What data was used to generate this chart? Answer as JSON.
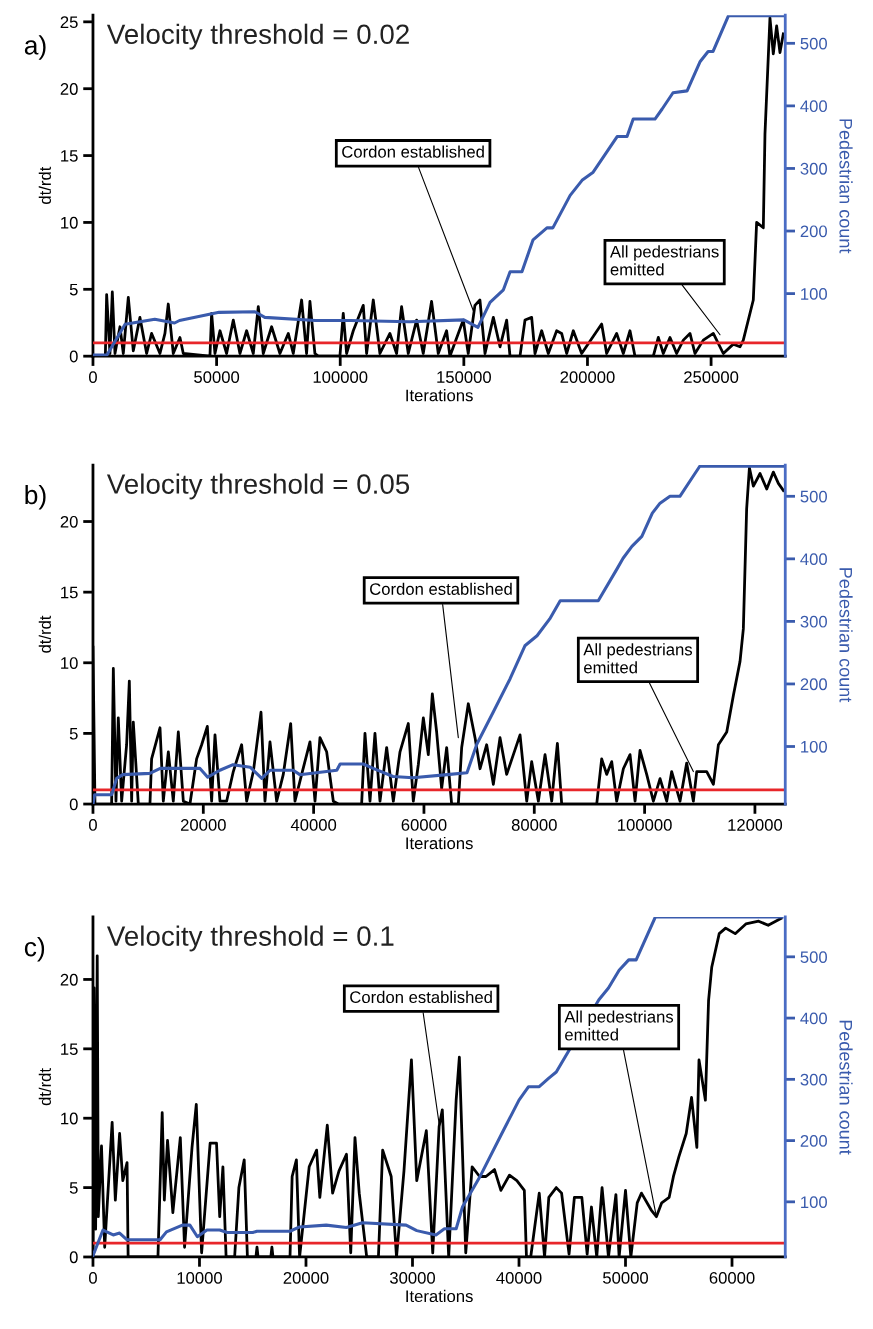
{
  "chart_data": [
    {
      "type": "line",
      "title": "Velocity threshold = 0.02",
      "xlabel": "Iterations",
      "ylabel": "dt/rdt",
      "y2label": "Pedestrian count",
      "xlim": [
        0,
        280000
      ],
      "ylim": [
        0,
        25.5
      ],
      "y2lim": [
        0,
        545
      ],
      "xticks": [
        0,
        50000,
        100000,
        150000,
        200000,
        250000
      ],
      "yticks": [
        0,
        5,
        10,
        15,
        20,
        25
      ],
      "y2ticks": [
        100,
        200,
        300,
        400,
        500
      ],
      "grid": false,
      "legend": false,
      "ref_lines": [
        {
          "axis": "y",
          "value": 1,
          "color": "#e8262a"
        }
      ],
      "annotations": [
        "a)",
        {
          "text": "Cordon established",
          "x": 153840,
          "y": 3.4
        },
        {
          "text": "All pedestrians\nemitted",
          "x": 253600,
          "y": 1.6
        }
      ],
      "series": [
        {
          "color": "#000000",
          "x": [
            0,
            5000,
            5530,
            6870,
            7820,
            8900,
            10920,
            12270,
            14290,
            16310,
            19000,
            21700,
            23720,
            27090,
            29110,
            30460,
            32480,
            35180,
            36530,
            47310,
            47990,
            49330,
            51360,
            54050,
            56750,
            59440,
            62140,
            64840,
            66860,
            68880,
            72250,
            75620,
            78990,
            81010,
            84380,
            86400,
            87750,
            89770,
            91120,
            99880,
            101230,
            102580,
            105280,
            109320,
            110670,
            113370,
            116060,
            120100,
            122800,
            124820,
            127520,
            130890,
            133580,
            136950,
            139650,
            143020,
            144370,
            149760,
            151780,
            154480,
            156500,
            158560,
            161930,
            164630,
            167320,
            168670,
            172710,
            174740,
            177430,
            178780,
            181480,
            184170,
            187540,
            189560,
            191590,
            194280,
            197650,
            205740,
            207760,
            211810,
            214500,
            217200,
            219220,
            226630,
            228660,
            230680,
            233380,
            236070,
            238770,
            241460,
            243480,
            246850,
            250900,
            254940,
            258980,
            261680,
            263030,
            267070,
            268420,
            271120,
            271790,
            273810,
            275160,
            276510,
            277860,
            279210
          ],
          "values": [
            0,
            0,
            4.6,
            0.2,
            4.8,
            0.2,
            2.2,
            0.2,
            4.4,
            0.4,
            2.9,
            0.2,
            1.7,
            0.2,
            1.7,
            3.9,
            0.2,
            1.4,
            0.2,
            0,
            3.2,
            0.2,
            1.9,
            0.2,
            2.7,
            0.2,
            1.9,
            0.2,
            3.7,
            0.2,
            2.2,
            0.2,
            1.7,
            0.2,
            4.2,
            0.2,
            4.1,
            0.2,
            0,
            0,
            3.2,
            0.2,
            1.9,
            3.8,
            0.2,
            4.2,
            0.2,
            1.7,
            0.2,
            3.7,
            0.2,
            2.7,
            0.2,
            4.1,
            0.2,
            1.9,
            0,
            2.7,
            0.2,
            3.8,
            4.2,
            0.2,
            2.9,
            0.7,
            2.7,
            0,
            0,
            2.7,
            2.9,
            0.2,
            1.9,
            0.2,
            1.9,
            1.7,
            0.2,
            1.9,
            0.2,
            2.4,
            0.2,
            1.7,
            0.2,
            1.9,
            0,
            0,
            1.4,
            0.2,
            1.4,
            0.2,
            1.2,
            1.7,
            0.2,
            1.2,
            1.7,
            0.2,
            0.9,
            0.7,
            1.2,
            4.2,
            10,
            9.6,
            16.6,
            25.3,
            22.6,
            24.7,
            22.7,
            24.1
          ]
        },
        {
          "color": "#3a5bad",
          "axis": "y2",
          "x": [
            0,
            5660,
            13000,
            25000,
            33000,
            35000,
            51000,
            65500,
            69500,
            90000,
            104000,
            128000,
            150000,
            155700,
            160600,
            166000,
            168700,
            173500,
            178000,
            183600,
            186000,
            193000,
            197800,
            202300,
            212000,
            216000,
            218500,
            227300,
            230200,
            234600,
            240300,
            245600,
            248800,
            250800,
            257000,
            279000
          ],
          "values": [
            2,
            2,
            51,
            59,
            53,
            57,
            70,
            71,
            62,
            57,
            57,
            55,
            58,
            46,
            86,
            106,
            135,
            135,
            186,
            205,
            205,
            257,
            281,
            294,
            351,
            351,
            379,
            379,
            395,
            421,
            424,
            471,
            487,
            487,
            544,
            544
          ]
        }
      ]
    },
    {
      "type": "line",
      "title": "Velocity threshold = 0.05",
      "xlabel": "Iterations",
      "ylabel": "dt/rdt",
      "y2label": "Pedestrian count",
      "xlim": [
        0,
        125500
      ],
      "ylim": [
        0,
        24
      ],
      "y2lim": [
        8,
        550
      ],
      "xticks": [
        0,
        20000,
        40000,
        60000,
        80000,
        100000,
        120000
      ],
      "yticks": [
        0,
        5,
        10,
        15,
        20
      ],
      "y2ticks": [
        100,
        200,
        300,
        400,
        500
      ],
      "grid": false,
      "legend": false,
      "ref_lines": [
        {
          "axis": "y",
          "value": 1,
          "color": "#e8262a"
        }
      ],
      "annotations": [
        "b)",
        {
          "text": "Cordon established",
          "x": 66230,
          "y": 4.7
        },
        {
          "text": "All pedestrians\nemitted",
          "x": 108840,
          "y": 2.3
        }
      ],
      "series": [
        {
          "color": "#000000",
          "x": [
            0,
            360,
            3380,
            3690,
            4170,
            4590,
            5200,
            6100,
            6590,
            7010,
            7310,
            8220,
            10330,
            10630,
            12150,
            12750,
            13660,
            14560,
            15470,
            16380,
            17580,
            18790,
            19700,
            20730,
            21510,
            22120,
            23020,
            24230,
            25440,
            26950,
            27860,
            29070,
            30460,
            31180,
            32090,
            33300,
            34500,
            35840,
            36620,
            37830,
            39340,
            40250,
            41150,
            42360,
            43570,
            44480,
            48700,
            49310,
            50220,
            51120,
            52030,
            53240,
            54450,
            55660,
            57160,
            58070,
            58980,
            59890,
            60790,
            61520,
            62300,
            63210,
            64120,
            65020,
            66230,
            66840,
            68040,
            69260,
            70170,
            71370,
            72580,
            73790,
            75000,
            76210,
            77420,
            78630,
            79530,
            80740,
            81950,
            83160,
            84190,
            84970,
            91320,
            92220,
            93130,
            94040,
            94940,
            96150,
            97360,
            98270,
            99170,
            100380,
            101590,
            102800,
            104010,
            104910,
            106420,
            107630,
            108840,
            109450,
            111260,
            112470,
            113380,
            114890,
            116100,
            117300,
            117900,
            118500,
            119000,
            119720,
            120930,
            122140,
            123340,
            124250,
            125160
          ],
          "values": [
            11.1,
            0,
            0,
            9.6,
            0.2,
            6.1,
            0.2,
            4.2,
            8.7,
            0.2,
            5.8,
            0,
            0,
            3.2,
            5.4,
            0.2,
            3.7,
            0.2,
            5.1,
            0.2,
            0,
            3.2,
            4.2,
            5.5,
            0.2,
            4.9,
            0.2,
            0.2,
            2.3,
            4.2,
            0.2,
            2.3,
            6.5,
            0.2,
            4.4,
            0.2,
            2.1,
            5.7,
            0.2,
            2.1,
            4.4,
            0.2,
            4.7,
            3.7,
            0.2,
            0,
            0,
            5,
            0.2,
            5,
            0.2,
            4,
            0.2,
            3.7,
            5.7,
            0.2,
            2.8,
            6.1,
            3.5,
            7.8,
            5.1,
            1.1,
            4,
            0,
            0,
            4,
            7.1,
            4.7,
            2.5,
            4.2,
            1.4,
            4.7,
            2.1,
            3.5,
            4.9,
            0.2,
            3,
            0.2,
            3.5,
            0.2,
            4.3,
            0,
            0,
            3.2,
            2.1,
            3,
            0.2,
            2.5,
            3.5,
            0.2,
            3.8,
            2.1,
            0.2,
            1.8,
            0.2,
            2.3,
            0.2,
            2.9,
            0.2,
            2.3,
            2.3,
            1.4,
            4.2,
            5.1,
            7.7,
            10.1,
            12.4,
            20.9,
            23.8,
            22.5,
            23.4,
            22.3,
            23.5,
            22.7,
            22.2
          ]
        },
        {
          "color": "#3a5bad",
          "axis": "y2",
          "x": [
            0,
            300,
            3400,
            4300,
            5400,
            10300,
            12200,
            15800,
            19400,
            20800,
            23000,
            25400,
            28500,
            30600,
            32100,
            36300,
            37500,
            44200,
            44800,
            49000,
            50800,
            54400,
            58000,
            64200,
            67800,
            69600,
            72500,
            75600,
            78300,
            80500,
            82800,
            84700,
            91600,
            95000,
            96100,
            97700,
            99500,
            101400,
            102800,
            104600,
            106400,
            108800,
            110000,
            125000
          ],
          "values": [
            8,
            23,
            23,
            49,
            55,
            57,
            65,
            65,
            65,
            51,
            62,
            71,
            67,
            49,
            62,
            62,
            55,
            62,
            72,
            72,
            65,
            52,
            50,
            55,
            58,
            104,
            154,
            208,
            261,
            277,
            304,
            333,
            333,
            384,
            401,
            420,
            436,
            473,
            489,
            500,
            500,
            532,
            548,
            548
          ]
        }
      ]
    },
    {
      "type": "line",
      "title": "Velocity threshold = 0.1",
      "xlabel": "Iterations",
      "ylabel": "dt/rdt",
      "y2label": "Pedestrian count",
      "xlim": [
        0,
        65000
      ],
      "ylim": [
        0,
        24.5
      ],
      "y2lim": [
        10,
        565
      ],
      "xticks": [
        0,
        10000,
        20000,
        30000,
        40000,
        50000,
        60000
      ],
      "yticks": [
        0,
        5,
        10,
        15,
        20
      ],
      "y2ticks": [
        100,
        200,
        300,
        400,
        500
      ],
      "grid": false,
      "legend": false,
      "ref_lines": [
        {
          "axis": "y",
          "value": 1,
          "color": "#e8262a"
        }
      ],
      "annotations": [
        "c)",
        {
          "text": "Cordon established",
          "x": 32500,
          "y": 9.6
        },
        {
          "text": "All pedestrians\nemitted",
          "x": 52900,
          "y": 2.9
        }
      ],
      "series": [
        {
          "color": "#000000",
          "x": [
            0,
            100,
            250,
            400,
            500,
            800,
            1100,
            1800,
            2100,
            2500,
            2800,
            3200,
            3300,
            6100,
            6500,
            6700,
            7000,
            7500,
            8200,
            8600,
            9300,
            9700,
            10200,
            11000,
            11600,
            11900,
            12200,
            12500,
            13300,
            13700,
            14200,
            14500,
            15300,
            15400,
            15500,
            16700,
            16800,
            16900,
            18500,
            18700,
            19100,
            19400,
            20300,
            21000,
            21300,
            22000,
            22500,
            23100,
            23800,
            24200,
            24600,
            25000,
            25700,
            26800,
            27200,
            28000,
            28500,
            29200,
            29900,
            30400,
            31300,
            31900,
            32500,
            32800,
            33400,
            34100,
            34400,
            35000,
            35600,
            36300,
            36900,
            37700,
            38300,
            39100,
            39800,
            40500,
            40700,
            41100,
            41900,
            42400,
            42800,
            43500,
            44000,
            44700,
            45200,
            45900,
            46400,
            46800,
            47300,
            47800,
            48400,
            49100,
            49400,
            50000,
            50500,
            51100,
            51500,
            52400,
            52900,
            53400,
            54100,
            54500,
            55000,
            55700,
            56200,
            56700,
            56900,
            57500,
            57800,
            58100,
            58800,
            59400,
            60300,
            61300,
            62500,
            63400,
            64600
          ],
          "values": [
            0,
            19.4,
            2,
            21.7,
            2.9,
            8,
            0.7,
            9.7,
            4.1,
            8.9,
            5.5,
            6.8,
            0,
            0,
            10.4,
            4.1,
            8.4,
            3.2,
            8.6,
            0.7,
            7.9,
            11,
            0.3,
            8.2,
            8.2,
            2.9,
            6.5,
            0,
            0,
            5,
            7,
            0,
            0,
            0.7,
            0,
            0,
            0.7,
            0,
            0,
            5.8,
            7,
            0,
            6.5,
            7.7,
            4.3,
            9.5,
            4.6,
            6.2,
            7.4,
            0.3,
            8.6,
            4.6,
            0,
            0,
            7.7,
            5.8,
            0,
            6.2,
            14.2,
            5.5,
            9.1,
            0.3,
            9.4,
            10.6,
            0,
            11.3,
            14.4,
            0.3,
            6.5,
            5.8,
            5.8,
            6.3,
            4.8,
            5.9,
            5.5,
            4.8,
            0,
            0,
            4.6,
            0,
            4.3,
            5,
            4.6,
            0.2,
            4.3,
            4.3,
            0.2,
            3.6,
            0,
            5,
            0,
            4.5,
            0,
            4.8,
            0,
            3.9,
            4.6,
            3.4,
            2.9,
            3.9,
            4.3,
            5.8,
            7.2,
            8.9,
            11.5,
            7.9,
            14.2,
            11.3,
            18.5,
            20.9,
            23.3,
            23.7,
            23.3,
            24,
            24.2,
            23.9,
            24.4
          ]
        },
        {
          "color": "#3a5bad",
          "axis": "y2",
          "x": [
            0,
            940,
            1900,
            2500,
            3200,
            6300,
            6900,
            8400,
            9100,
            9800,
            10700,
            11900,
            12600,
            15000,
            15400,
            18500,
            19400,
            21900,
            23800,
            25300,
            29400,
            30400,
            32200,
            33000,
            34100,
            34700,
            36300,
            38400,
            40000,
            40900,
            41900,
            42800,
            43500,
            47500,
            48400,
            49400,
            50300,
            51000,
            52800,
            64700
          ],
          "values": [
            12,
            54,
            46,
            49,
            38,
            38,
            51,
            62,
            62,
            43,
            54,
            54,
            50,
            50,
            52,
            52,
            59,
            62,
            58,
            66,
            62,
            53,
            46,
            56,
            56,
            92,
            140,
            212,
            266,
            288,
            288,
            302,
            312,
            430,
            449,
            478,
            495,
            495,
            565,
            565
          ]
        }
      ]
    }
  ]
}
